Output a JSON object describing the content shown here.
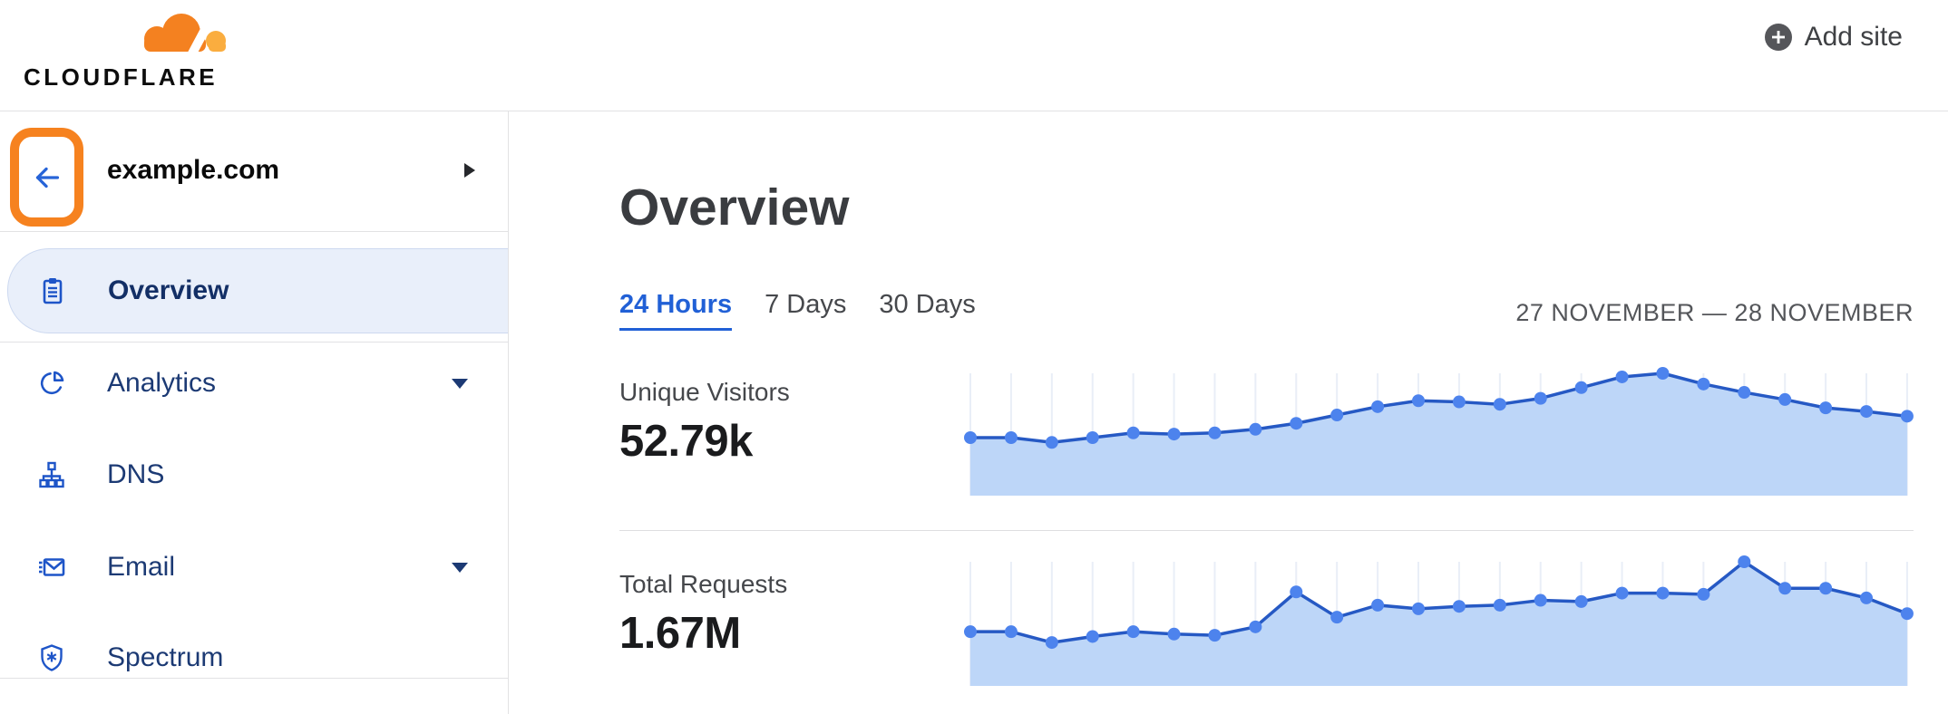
{
  "header": {
    "logo_text": "CLOUDFLARE",
    "add_site_label": "Add site"
  },
  "sidebar": {
    "site_name": "example.com",
    "items": [
      {
        "label": "Overview",
        "icon": "clipboard-icon",
        "active": true,
        "has_submenu": false
      },
      {
        "label": "Analytics",
        "icon": "pie-chart-icon",
        "active": false,
        "has_submenu": true
      },
      {
        "label": "DNS",
        "icon": "sitemap-icon",
        "active": false,
        "has_submenu": false
      },
      {
        "label": "Email",
        "icon": "envelope-icon",
        "active": false,
        "has_submenu": true
      },
      {
        "label": "Spectrum",
        "icon": "shield-icon",
        "active": false,
        "has_submenu": false
      }
    ]
  },
  "main": {
    "title": "Overview",
    "tabs": [
      {
        "label": "24 Hours",
        "active": true
      },
      {
        "label": "7 Days",
        "active": false
      },
      {
        "label": "30 Days",
        "active": false
      }
    ],
    "date_range": "27 NOVEMBER — 28 NOVEMBER"
  },
  "chart_data": [
    {
      "type": "area",
      "title": "Unique Visitors",
      "total": "52.79k",
      "x": "24 hourly points spanning 27–28 November (no tick labels shown)",
      "ylabel": "unlabeled; point heights estimated as percent of series peak",
      "values_pct_of_peak": [
        46,
        46,
        42,
        46,
        50,
        49,
        50,
        53,
        58,
        65,
        72,
        77,
        76,
        74,
        79,
        88,
        97,
        100,
        91,
        84,
        78,
        71,
        68,
        64
      ],
      "grid": "vertical gridline at each point",
      "legend": "none"
    },
    {
      "type": "area",
      "title": "Total Requests",
      "total": "1.67M",
      "x": "24 hourly points spanning 27–28 November (no tick labels shown)",
      "ylabel": "unlabeled; point heights estimated as percent of series peak",
      "values_pct_of_peak": [
        42,
        42,
        33,
        38,
        42,
        40,
        39,
        46,
        75,
        54,
        64,
        61,
        63,
        64,
        68,
        67,
        74,
        74,
        73,
        100,
        78,
        78,
        70,
        57
      ],
      "grid": "vertical gridline at each point",
      "legend": "none"
    }
  ],
  "colors": {
    "brand_orange": "#f6821f",
    "brand_orange_light": "#fbad41",
    "accent_blue": "#2160d6",
    "sidebar_icon_blue": "#1e55c8",
    "sidebar_text_navy": "#1c3a74",
    "active_item_bg": "#e9effa",
    "highlight_ring": "#f6821f",
    "chart_dot": "#4d83ed",
    "chart_line": "#2659c4",
    "chart_fill": "#bdd6f8",
    "chart_grid": "#e9eef7"
  }
}
